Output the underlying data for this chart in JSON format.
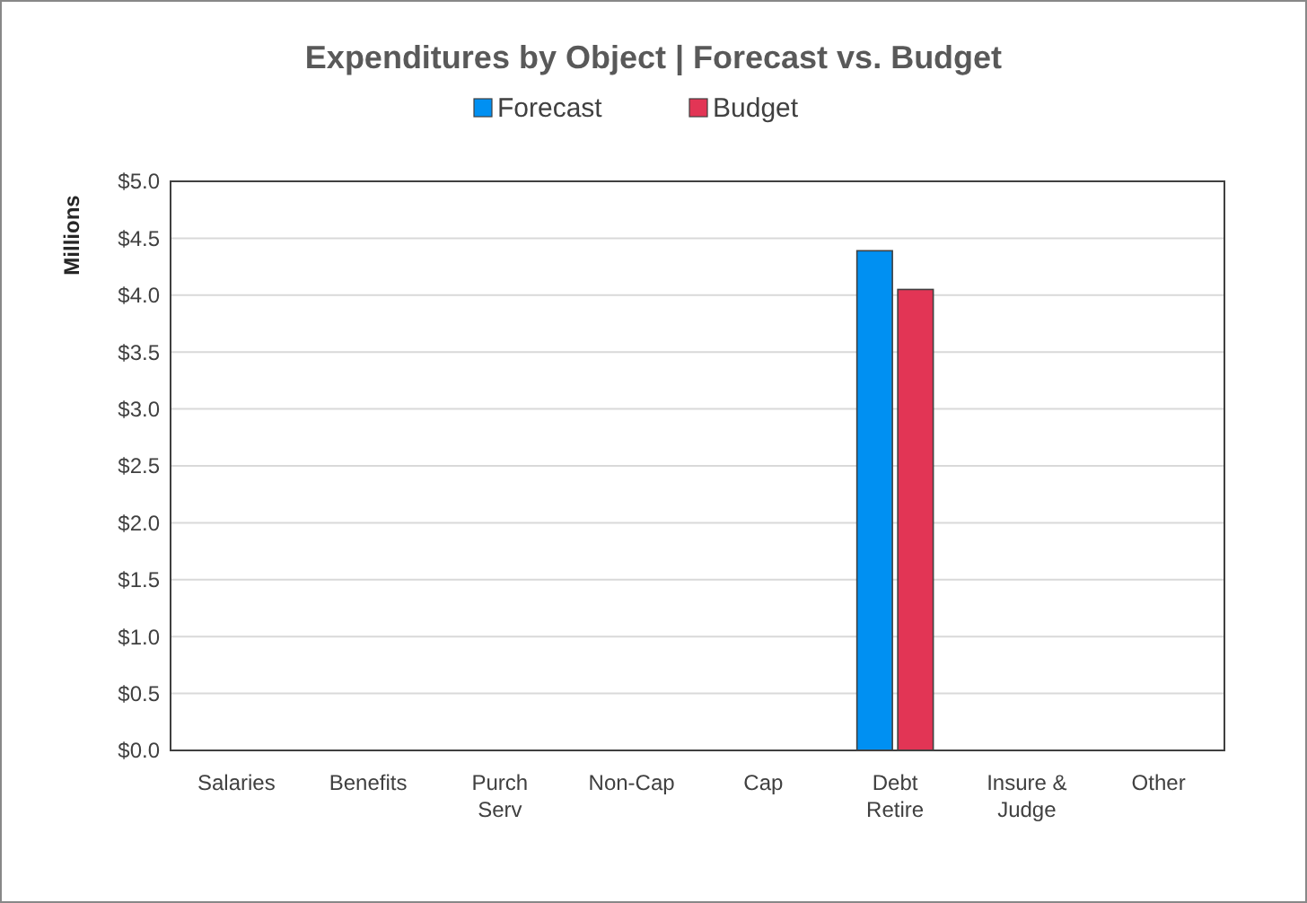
{
  "chart_data": {
    "type": "bar",
    "title": "Expenditures by Object | Forecast vs. Budget",
    "ylabel": "Millions",
    "categories": [
      "Salaries",
      "Benefits",
      "Purch Serv",
      "Non-Cap",
      "Cap",
      "Debt Retire",
      "Insure & Judge",
      "Other"
    ],
    "series": [
      {
        "name": "Forecast",
        "color": "#0090f2",
        "values": [
          0,
          0,
          0,
          0,
          0,
          4.39,
          0,
          0
        ]
      },
      {
        "name": "Budget",
        "color": "#e23555",
        "values": [
          0,
          0,
          0,
          0,
          0,
          4.05,
          0,
          0
        ]
      }
    ],
    "ylim": [
      0,
      5
    ],
    "yticks": [
      {
        "value": 0,
        "label": "$0.0"
      },
      {
        "value": 0.5,
        "label": "$0.5"
      },
      {
        "value": 1,
        "label": "$1.0"
      },
      {
        "value": 1.5,
        "label": "$1.5"
      },
      {
        "value": 2,
        "label": "$2.0"
      },
      {
        "value": 2.5,
        "label": "$2.5"
      },
      {
        "value": 3,
        "label": "$3.0"
      },
      {
        "value": 3.5,
        "label": "$3.5"
      },
      {
        "value": 4,
        "label": "$4.0"
      },
      {
        "value": 4.5,
        "label": "$4.5"
      },
      {
        "value": 5,
        "label": "$5.0"
      }
    ],
    "grid": "y",
    "legend": "top"
  }
}
